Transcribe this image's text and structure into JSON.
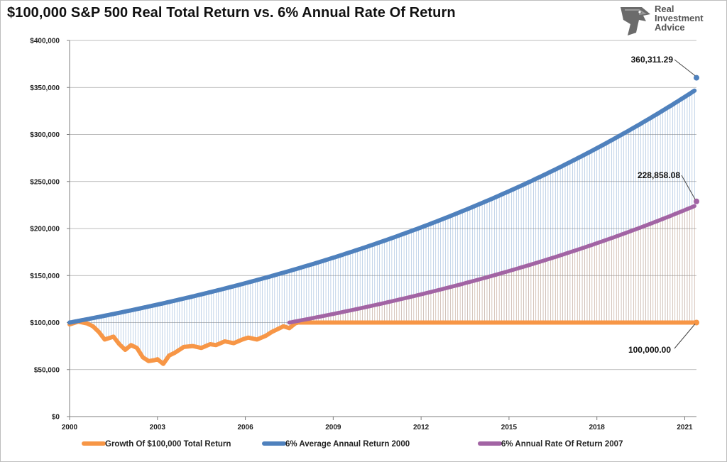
{
  "title": "$100,000 S&P 500 Real Total Return vs. 6% Annual Rate Of Return",
  "logo": {
    "line1": "Real",
    "line2": "Investment",
    "line3": "Advice",
    "icon": "eagle-head-icon"
  },
  "colors": {
    "orange": "#f79646",
    "blue": "#4f81bd",
    "purple": "#a264a4",
    "grid": "#a6a6a6",
    "axis": "#7f7f7f"
  },
  "chart_data": {
    "type": "line",
    "title": "$100,000 S&P 500 Real Total Return vs. 6% Annual Rate Of Return",
    "xlim": [
      2000,
      2021.4
    ],
    "ylim": [
      0,
      400000
    ],
    "x_ticks": [
      2000,
      2003,
      2006,
      2009,
      2012,
      2015,
      2018,
      2021
    ],
    "x_tick_labels": [
      "2000",
      "2003",
      "2006",
      "2009",
      "2012",
      "2015",
      "2018",
      "2021"
    ],
    "y_ticks": [
      0,
      50000,
      100000,
      150000,
      200000,
      250000,
      300000,
      350000,
      400000
    ],
    "y_tick_labels": [
      "$0",
      "$50,000",
      "$100,000",
      "$150,000",
      "$200,000",
      "$250,000",
      "$300,000",
      "$350,000",
      "$400,000"
    ],
    "grid": true,
    "legend_position": "bottom",
    "series": [
      {
        "name": "Growth Of $100,000 Total Return",
        "color": "#f79646",
        "x": [
          2000.0,
          2000.3,
          2000.6,
          2000.8,
          2001.0,
          2001.2,
          2001.5,
          2001.7,
          2001.9,
          2002.1,
          2002.3,
          2002.5,
          2002.7,
          2002.9,
          2003.0,
          2003.2,
          2003.4,
          2003.6,
          2003.9,
          2004.2,
          2004.5,
          2004.8,
          2005.0,
          2005.3,
          2005.6,
          2005.9,
          2006.1,
          2006.4,
          2006.7,
          2006.9,
          2007.1,
          2007.3,
          2007.5,
          2007.7,
          2007.8,
          2008.5,
          2010,
          2013,
          2016,
          2019,
          2021.4
        ],
        "values": [
          98000,
          101000,
          99000,
          96000,
          90000,
          82000,
          85000,
          77000,
          71000,
          76000,
          73000,
          63000,
          59000,
          60000,
          61000,
          56000,
          65000,
          68000,
          74000,
          75000,
          73000,
          77000,
          76000,
          80000,
          78000,
          82000,
          84000,
          82000,
          86000,
          90000,
          93000,
          96000,
          94000,
          99000,
          100000,
          100000,
          100000,
          100000,
          100000,
          100000,
          100000
        ]
      },
      {
        "name": "6% Average Annaul Return 2000",
        "color": "#4f81bd",
        "start_x": 2000,
        "start_value": 100000,
        "annual_rate": 0.06,
        "end_x": 2021.4,
        "end_value": 360311.29
      },
      {
        "name": "6% Annual Rate Of Return 2007",
        "color": "#a264a4",
        "start_x": 2007.5,
        "start_value": 100000,
        "annual_rate": 0.06,
        "end_x": 2021.4,
        "end_value": 228858.08
      }
    ],
    "annotations": [
      {
        "label": "360,311.29",
        "x": 2021.4,
        "value": 360311.29
      },
      {
        "label": "228,858.08",
        "x": 2021.4,
        "value": 228858.08
      },
      {
        "label": "100,000.00",
        "x": 2021.4,
        "value": 100000
      }
    ]
  }
}
